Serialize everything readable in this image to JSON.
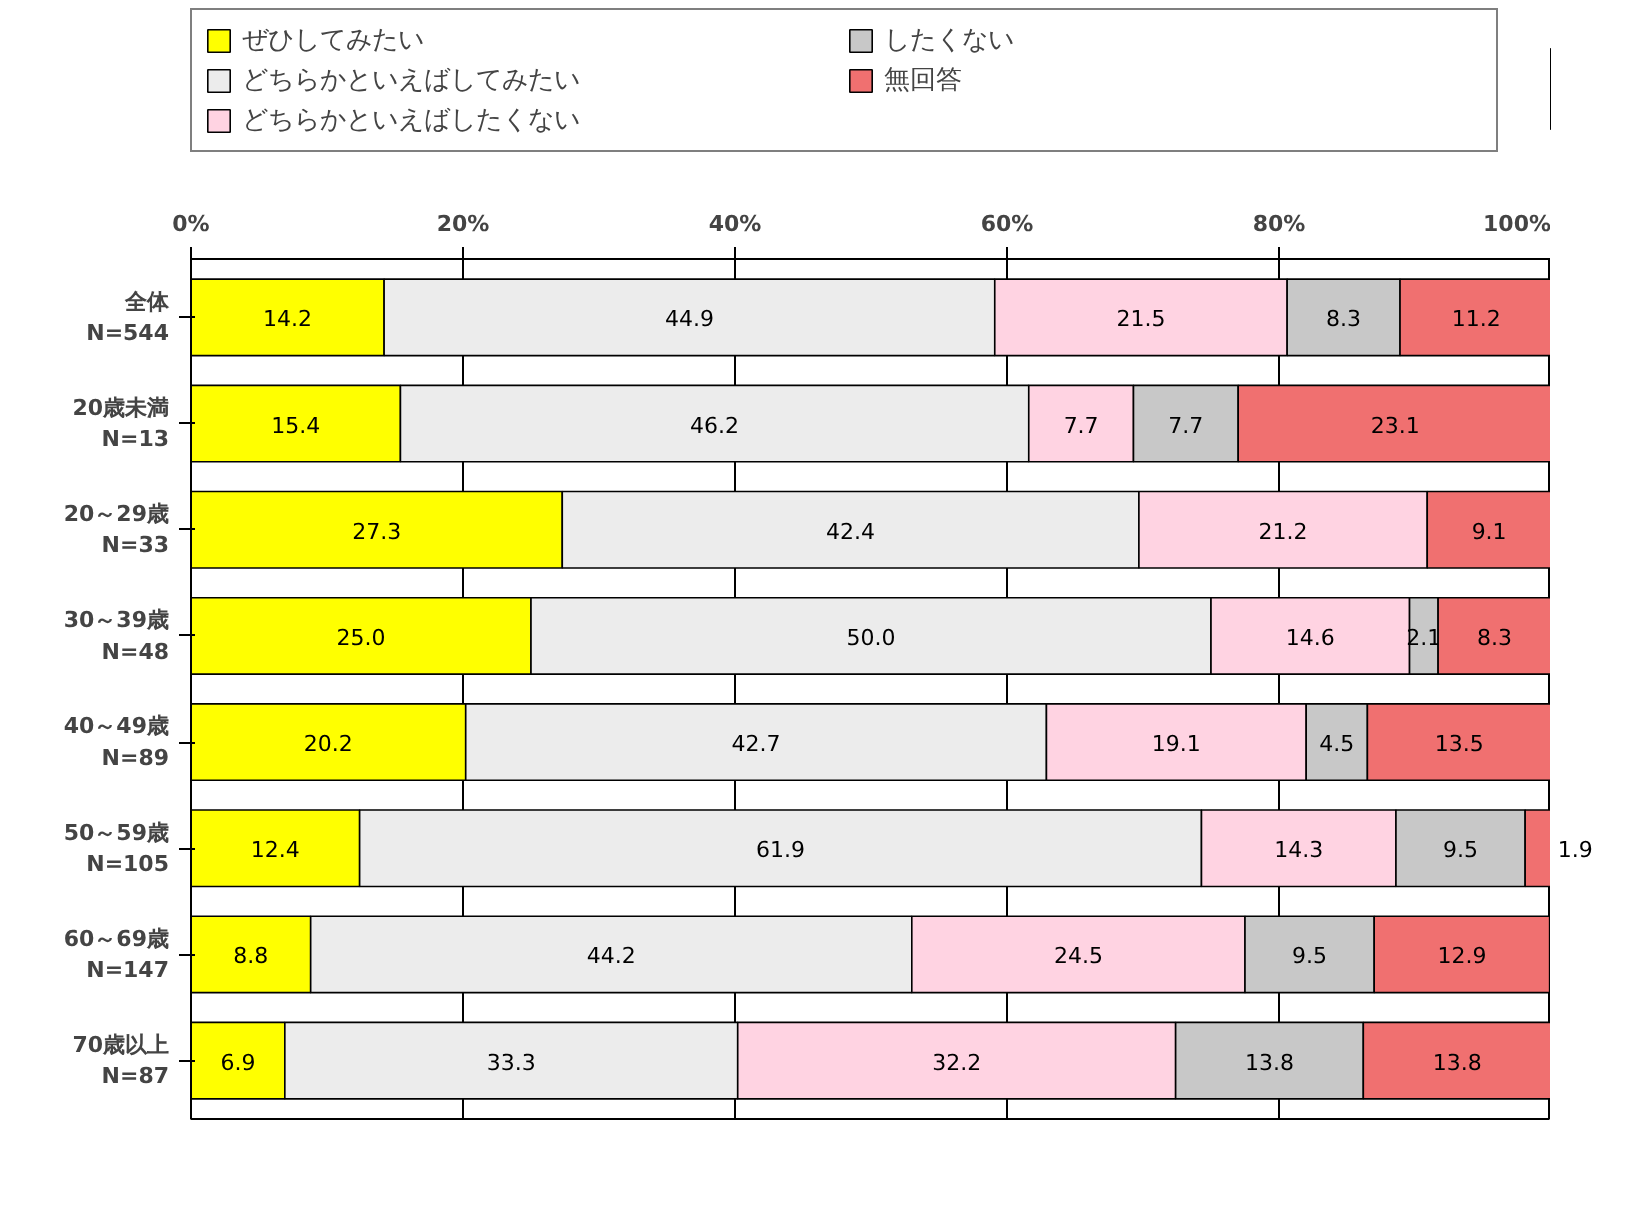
{
  "chart_data": {
    "type": "bar",
    "orientation": "horizontal",
    "stacked": true,
    "legend": "top",
    "grid": "x",
    "categories": [
      "全体\nN=544",
      "20歳未満\nN=13",
      "20～29歳\nN=33",
      "30～39歳\nN=48",
      "40～49歳\nN=89",
      "50～59歳\nN=105",
      "60～69歳\nN=147",
      "70歳以上\nN=87"
    ],
    "xlim": [
      0,
      100
    ],
    "xticks": [
      {
        "value": 0,
        "label": "0%"
      },
      {
        "value": 20,
        "label": "20%"
      },
      {
        "value": 40,
        "label": "40%"
      },
      {
        "value": 60,
        "label": "60%"
      },
      {
        "value": 80,
        "label": "80%"
      },
      {
        "value": 100,
        "label": "100%"
      }
    ],
    "series": [
      {
        "name": "ぜひしてみたい",
        "color": "#ffff00",
        "values": [
          14.2,
          15.4,
          27.3,
          25.0,
          20.2,
          12.4,
          8.8,
          6.9
        ],
        "value_labels": [
          "14.2",
          "15.4",
          "27.3",
          "25.0",
          "20.2",
          "12.4",
          "8.8",
          "6.9"
        ]
      },
      {
        "name": "どちらかといえばしてみたい",
        "color": "#ececec",
        "values": [
          44.9,
          46.2,
          42.4,
          50.0,
          42.7,
          61.9,
          44.2,
          33.3
        ],
        "value_labels": [
          "44.9",
          "46.2",
          "42.4",
          "50.0",
          "42.7",
          "61.9",
          "44.2",
          "33.3"
        ]
      },
      {
        "name": "どちらかといえばしたくない",
        "color": "#ffd3e2",
        "values": [
          21.5,
          7.7,
          21.2,
          14.6,
          19.1,
          14.3,
          24.5,
          32.2
        ],
        "value_labels": [
          "21.5",
          "7.7",
          "21.2",
          "14.6",
          "19.1",
          "14.3",
          "24.5",
          "32.2"
        ]
      },
      {
        "name": "したくない",
        "color": "#c8c8c8",
        "values": [
          8.3,
          7.7,
          null,
          2.1,
          4.5,
          9.5,
          9.5,
          13.8
        ],
        "value_labels": [
          "8.3",
          "7.7",
          null,
          "2.1",
          "4.5",
          "9.5",
          "9.5",
          "13.8"
        ]
      },
      {
        "name": "無回答",
        "color": "#f07070",
        "values": [
          11.2,
          23.1,
          9.1,
          8.3,
          13.5,
          1.9,
          12.9,
          13.8
        ],
        "value_labels": [
          "11.2",
          "23.1",
          "9.1",
          "8.3",
          "13.5",
          "1.9",
          "12.9",
          "13.8"
        ]
      }
    ]
  }
}
